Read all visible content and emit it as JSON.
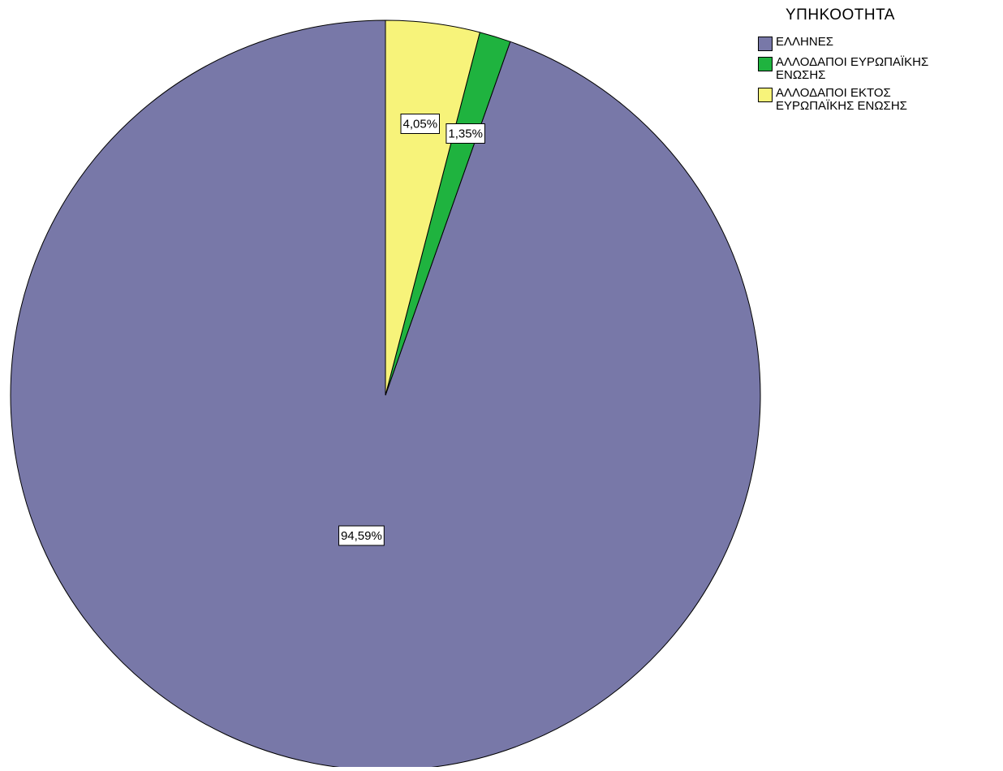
{
  "chart_data": {
    "type": "pie",
    "title": "",
    "legend_title": "ΥΠΗΚΟΟΤΗΤΑ",
    "legend_position": "top-right",
    "start_angle_deg": 0,
    "direction": "counterclockwise",
    "slices": [
      {
        "label": "ΕΛΛΗΝΕΣ",
        "value": 94.59,
        "display": "94,59%",
        "color": "#7878a8"
      },
      {
        "label": "ΑΛΛΟΔΑΠΟΙ ΕΥΡΩΠΑΪΚΗΣ ΕΝΩΣΗΣ",
        "value": 1.35,
        "display": "1,35%",
        "color": "#1fb33f"
      },
      {
        "label": "ΑΛΛΟΔΑΠΟΙ ΕΚΤΟΣ ΕΥΡΩΠΑΪΚΗΣ ΕΝΩΣΗΣ",
        "value": 4.05,
        "display": "4,05%",
        "color": "#f7f37a"
      }
    ]
  }
}
